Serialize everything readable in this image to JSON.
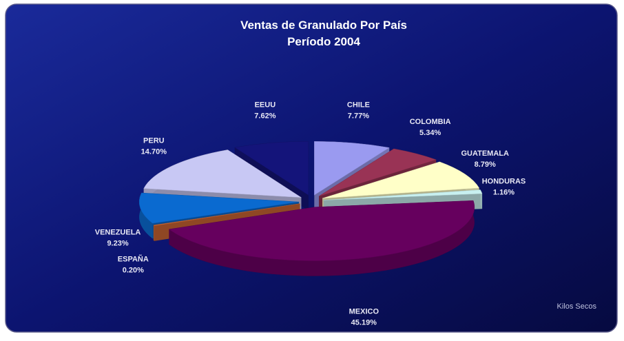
{
  "chart_data": {
    "type": "pie",
    "title": "Ventas de Granulado Por País",
    "subtitle": "Período 2004",
    "footnote": "Kilos Secos",
    "categories": [
      "CHILE",
      "COLOMBIA",
      "GUATEMALA",
      "HONDURAS",
      "MEXICO",
      "ESPAÑA",
      "VENEZUELA",
      "PERU",
      "EEUU"
    ],
    "values": [
      7.77,
      5.34,
      8.79,
      1.16,
      45.19,
      0.2,
      9.23,
      14.7,
      7.62
    ],
    "value_labels": [
      "7.77%",
      "5.34%",
      "8.79%",
      "1.16%",
      "45.19%",
      "0.20%",
      "9.23%",
      "14.70%",
      "7.62%"
    ],
    "colors": [
      "#9a9af0",
      "#993355",
      "#ffffc8",
      "#c8f0f0",
      "#66005e",
      "#cc6633",
      "#0a6ad0",
      "#c8c8f4",
      "#14147a"
    ]
  }
}
